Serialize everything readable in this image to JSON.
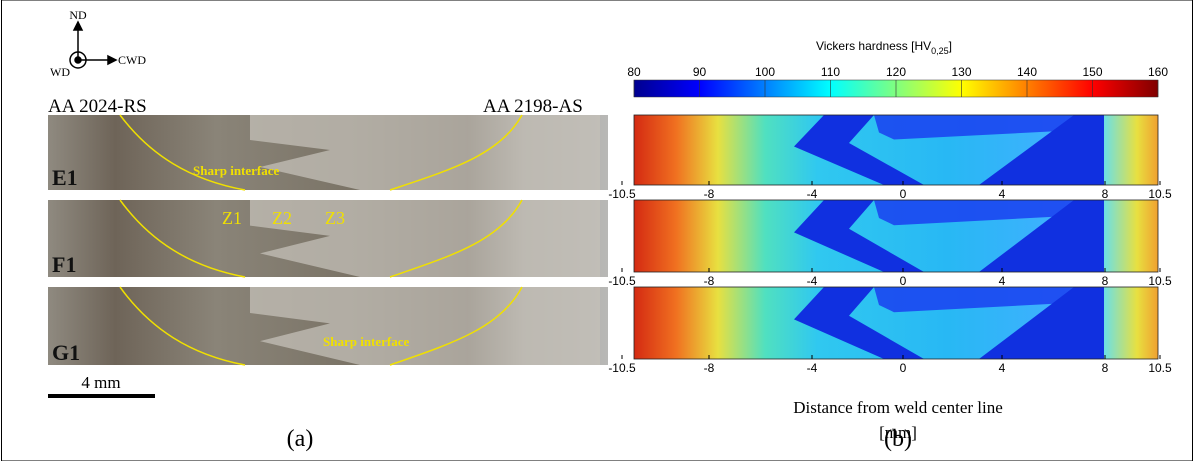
{
  "panel_a": {
    "axes": {
      "nd": "ND",
      "cwd": "CWD",
      "wd": "WD"
    },
    "left_material": "AA 2024-RS",
    "right_material": "AA 2198-AS",
    "samples": [
      {
        "label": "E1",
        "annotations": [
          "Sharp interface"
        ]
      },
      {
        "label": "F1",
        "annotations": [
          "Z1",
          "Z2",
          "Z3"
        ]
      },
      {
        "label": "G1",
        "annotations": [
          "Sharp interface"
        ]
      }
    ],
    "scale_bar": "4 mm",
    "caption": "(a)"
  },
  "panel_b": {
    "colorbar_title": "Vickers hardness [HV",
    "colorbar_subscript": "0,25",
    "colorbar_title_end": "]",
    "colorbar_ticks": [
      "80",
      "90",
      "100",
      "110",
      "120",
      "130",
      "140",
      "150",
      "160"
    ],
    "x_ticks": [
      "-10.5",
      "-8",
      "-4",
      "0",
      "4",
      "8",
      "10.5"
    ],
    "x_label": "Distance from weld center line",
    "x_unit": "[mm]",
    "caption": "(b)"
  }
}
